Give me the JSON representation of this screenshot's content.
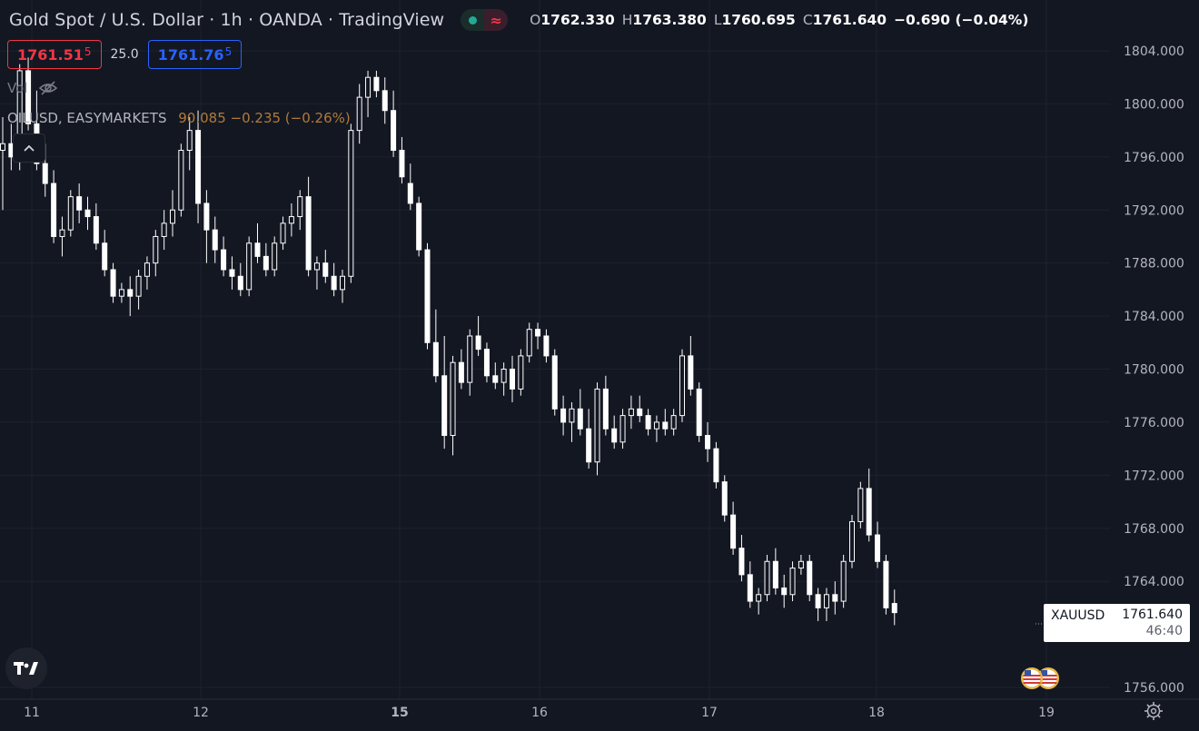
{
  "header": {
    "title": "Gold Spot / U.S. Dollar · 1h · OANDA · TradingView",
    "ohlc": {
      "o_label": "O",
      "o": "1762.330",
      "h_label": "H",
      "h": "1763.380",
      "l_label": "L",
      "l": "1760.695",
      "c_label": "C",
      "c": "1761.640",
      "change": "−0.690 (−0.04%)"
    },
    "status_icons": [
      "market-open-dot-icon",
      "wave-icon"
    ]
  },
  "trade": {
    "sell_main": "1761.51",
    "sell_sub": "5",
    "spread": "25.0",
    "buy_main": "1761.76",
    "buy_sub": "5"
  },
  "indicators": {
    "vol_label": "Vol",
    "compare_symbol": "OILUSD, EASYMARKETS",
    "compare_values": "90.085  −0.235 (−0.26%)"
  },
  "price_tag": {
    "symbol": "XAUUSD",
    "value": "1761.640",
    "countdown": "46:40"
  },
  "colors": {
    "background": "#131722",
    "grid": "#1e222d",
    "candle": "#ffffff",
    "sell": "#f23645",
    "buy": "#2962ff",
    "compare": "#b07a3b"
  },
  "chart_data": {
    "type": "candlestick",
    "timeframe": "1h",
    "ylim": [
      1754,
      1806
    ],
    "yticks": [
      1756,
      1764,
      1768,
      1772,
      1776,
      1780,
      1784,
      1788,
      1792,
      1796,
      1800,
      1804
    ],
    "ytick_labels": [
      "1756.000",
      "1764.000",
      "1768.000",
      "1772.000",
      "1776.000",
      "1780.000",
      "1784.000",
      "1788.000",
      "1792.000",
      "1796.000",
      "1800.000",
      "1804.000"
    ],
    "xtick_labels": [
      {
        "label": "11",
        "bold": false,
        "hour": 0
      },
      {
        "label": "12",
        "bold": false,
        "hour": 22
      },
      {
        "label": "15",
        "bold": true,
        "hour": 46
      },
      {
        "label": "16",
        "bold": false,
        "hour": 68
      },
      {
        "label": "17",
        "bold": false,
        "hour": 90
      },
      {
        "label": "18",
        "bold": false,
        "hour": 112
      },
      {
        "label": "19",
        "bold": false,
        "hour": 123
      }
    ],
    "candles": [
      [
        1796.5,
        1799.0,
        1792.0,
        1797.0
      ],
      [
        1797.0,
        1798.5,
        1795.0,
        1796.0
      ],
      [
        1796.0,
        1803.0,
        1795.0,
        1802.5
      ],
      [
        1802.5,
        1803.5,
        1798.0,
        1798.5
      ],
      [
        1798.5,
        1801.0,
        1795.0,
        1795.5
      ],
      [
        1795.5,
        1797.0,
        1793.0,
        1794.0
      ],
      [
        1794.0,
        1795.0,
        1789.5,
        1790.0
      ],
      [
        1790.0,
        1791.5,
        1788.5,
        1790.5
      ],
      [
        1790.5,
        1793.5,
        1790.0,
        1793.0
      ],
      [
        1793.0,
        1794.0,
        1791.0,
        1792.0
      ],
      [
        1792.0,
        1793.0,
        1790.5,
        1791.5
      ],
      [
        1791.5,
        1792.5,
        1789.0,
        1789.5
      ],
      [
        1789.5,
        1790.5,
        1787.0,
        1787.5
      ],
      [
        1787.5,
        1788.0,
        1785.0,
        1785.5
      ],
      [
        1785.5,
        1786.5,
        1785.0,
        1786.0
      ],
      [
        1786.0,
        1787.0,
        1784.0,
        1785.5
      ],
      [
        1785.5,
        1787.5,
        1784.5,
        1787.0
      ],
      [
        1787.0,
        1788.5,
        1786.0,
        1788.0
      ],
      [
        1788.0,
        1790.5,
        1787.0,
        1790.0
      ],
      [
        1790.0,
        1792.0,
        1789.0,
        1791.0
      ],
      [
        1791.0,
        1793.5,
        1790.0,
        1792.0
      ],
      [
        1792.0,
        1797.0,
        1791.5,
        1796.5
      ],
      [
        1796.5,
        1799.0,
        1795.0,
        1798.0
      ],
      [
        1798.0,
        1799.5,
        1791.0,
        1792.5
      ],
      [
        1792.5,
        1793.5,
        1788.0,
        1790.5
      ],
      [
        1790.5,
        1791.5,
        1788.0,
        1789.0
      ],
      [
        1789.0,
        1790.0,
        1787.0,
        1787.5
      ],
      [
        1787.5,
        1788.5,
        1786.0,
        1787.0
      ],
      [
        1787.0,
        1788.0,
        1785.5,
        1786.0
      ],
      [
        1786.0,
        1790.0,
        1785.5,
        1789.5
      ],
      [
        1789.5,
        1791.0,
        1788.0,
        1788.5
      ],
      [
        1788.5,
        1789.5,
        1787.0,
        1787.5
      ],
      [
        1787.5,
        1790.0,
        1787.0,
        1789.5
      ],
      [
        1789.5,
        1791.5,
        1789.0,
        1791.0
      ],
      [
        1791.0,
        1792.5,
        1790.0,
        1791.5
      ],
      [
        1791.5,
        1793.5,
        1790.5,
        1793.0
      ],
      [
        1793.0,
        1794.5,
        1787.0,
        1787.5
      ],
      [
        1787.5,
        1788.5,
        1786.0,
        1788.0
      ],
      [
        1788.0,
        1789.0,
        1786.5,
        1787.0
      ],
      [
        1787.0,
        1788.0,
        1785.5,
        1786.0
      ],
      [
        1786.0,
        1787.5,
        1785.0,
        1787.0
      ],
      [
        1787.0,
        1798.5,
        1786.5,
        1798.0
      ],
      [
        1798.0,
        1801.5,
        1797.0,
        1800.5
      ],
      [
        1800.5,
        1802.5,
        1799.0,
        1802.0
      ],
      [
        1802.0,
        1802.5,
        1800.5,
        1801.0
      ],
      [
        1801.0,
        1802.0,
        1798.5,
        1799.5
      ],
      [
        1799.5,
        1801.0,
        1796.0,
        1796.5
      ],
      [
        1796.5,
        1797.5,
        1794.0,
        1794.5
      ],
      [
        1794.0,
        1795.5,
        1792.0,
        1792.5
      ],
      [
        1792.5,
        1793.0,
        1788.5,
        1789.0
      ],
      [
        1789.0,
        1789.5,
        1781.5,
        1782.0
      ],
      [
        1782.0,
        1784.5,
        1779.0,
        1779.5
      ],
      [
        1779.5,
        1782.5,
        1774.0,
        1775.0
      ],
      [
        1775.0,
        1781.0,
        1773.5,
        1780.5
      ],
      [
        1780.5,
        1781.5,
        1778.5,
        1779.0
      ],
      [
        1779.0,
        1783.0,
        1778.0,
        1782.5
      ],
      [
        1782.5,
        1784.0,
        1781.0,
        1781.5
      ],
      [
        1781.5,
        1782.0,
        1779.0,
        1779.5
      ],
      [
        1779.5,
        1780.5,
        1778.5,
        1779.0
      ],
      [
        1779.0,
        1780.5,
        1778.0,
        1780.0
      ],
      [
        1780.0,
        1781.0,
        1777.5,
        1778.5
      ],
      [
        1778.5,
        1781.5,
        1778.0,
        1781.0
      ],
      [
        1781.0,
        1783.5,
        1780.5,
        1783.0
      ],
      [
        1783.0,
        1783.5,
        1781.5,
        1782.5
      ],
      [
        1782.5,
        1783.0,
        1780.5,
        1781.0
      ],
      [
        1781.0,
        1781.5,
        1776.5,
        1777.0
      ],
      [
        1777.0,
        1778.0,
        1775.0,
        1776.0
      ],
      [
        1776.0,
        1777.5,
        1774.5,
        1777.0
      ],
      [
        1777.0,
        1778.5,
        1775.0,
        1775.5
      ],
      [
        1775.5,
        1777.0,
        1772.5,
        1773.0
      ],
      [
        1773.0,
        1779.0,
        1772.0,
        1778.5
      ],
      [
        1778.5,
        1779.5,
        1775.0,
        1775.5
      ],
      [
        1775.5,
        1776.5,
        1774.0,
        1774.5
      ],
      [
        1774.5,
        1777.0,
        1774.0,
        1776.5
      ],
      [
        1776.5,
        1778.0,
        1775.5,
        1777.0
      ],
      [
        1777.0,
        1778.0,
        1776.0,
        1776.5
      ],
      [
        1776.5,
        1777.0,
        1775.0,
        1775.5
      ],
      [
        1775.5,
        1776.5,
        1774.5,
        1776.0
      ],
      [
        1776.0,
        1777.0,
        1775.0,
        1775.5
      ],
      [
        1775.5,
        1777.0,
        1775.0,
        1776.5
      ],
      [
        1776.5,
        1781.5,
        1776.0,
        1781.0
      ],
      [
        1781.0,
        1782.5,
        1778.0,
        1778.5
      ],
      [
        1778.5,
        1779.0,
        1774.5,
        1775.0
      ],
      [
        1775.0,
        1776.0,
        1773.0,
        1774.0
      ],
      [
        1774.0,
        1774.5,
        1771.0,
        1771.5
      ],
      [
        1771.5,
        1772.0,
        1768.5,
        1769.0
      ],
      [
        1769.0,
        1770.0,
        1766.0,
        1766.5
      ],
      [
        1766.5,
        1767.5,
        1764.0,
        1764.5
      ],
      [
        1764.5,
        1765.5,
        1762.0,
        1762.5
      ],
      [
        1762.5,
        1763.5,
        1761.5,
        1763.0
      ],
      [
        1763.0,
        1766.0,
        1762.5,
        1765.5
      ],
      [
        1765.5,
        1766.5,
        1763.0,
        1763.5
      ],
      [
        1763.5,
        1764.5,
        1762.0,
        1763.0
      ],
      [
        1763.0,
        1765.5,
        1762.5,
        1765.0
      ],
      [
        1765.0,
        1766.0,
        1764.5,
        1765.5
      ],
      [
        1765.5,
        1766.0,
        1762.5,
        1763.0
      ],
      [
        1763.0,
        1763.5,
        1761.0,
        1762.0
      ],
      [
        1762.0,
        1763.5,
        1761.0,
        1763.0
      ],
      [
        1763.0,
        1764.0,
        1761.5,
        1762.5
      ],
      [
        1762.5,
        1766.0,
        1762.0,
        1765.5
      ],
      [
        1765.5,
        1769.0,
        1765.0,
        1768.5
      ],
      [
        1768.5,
        1771.5,
        1768.0,
        1771.0
      ],
      [
        1771.0,
        1772.5,
        1767.0,
        1767.5
      ],
      [
        1767.5,
        1768.5,
        1765.0,
        1765.5
      ],
      [
        1765.5,
        1766.0,
        1761.5,
        1762.0
      ],
      [
        1762.33,
        1763.38,
        1760.695,
        1761.64
      ]
    ]
  }
}
